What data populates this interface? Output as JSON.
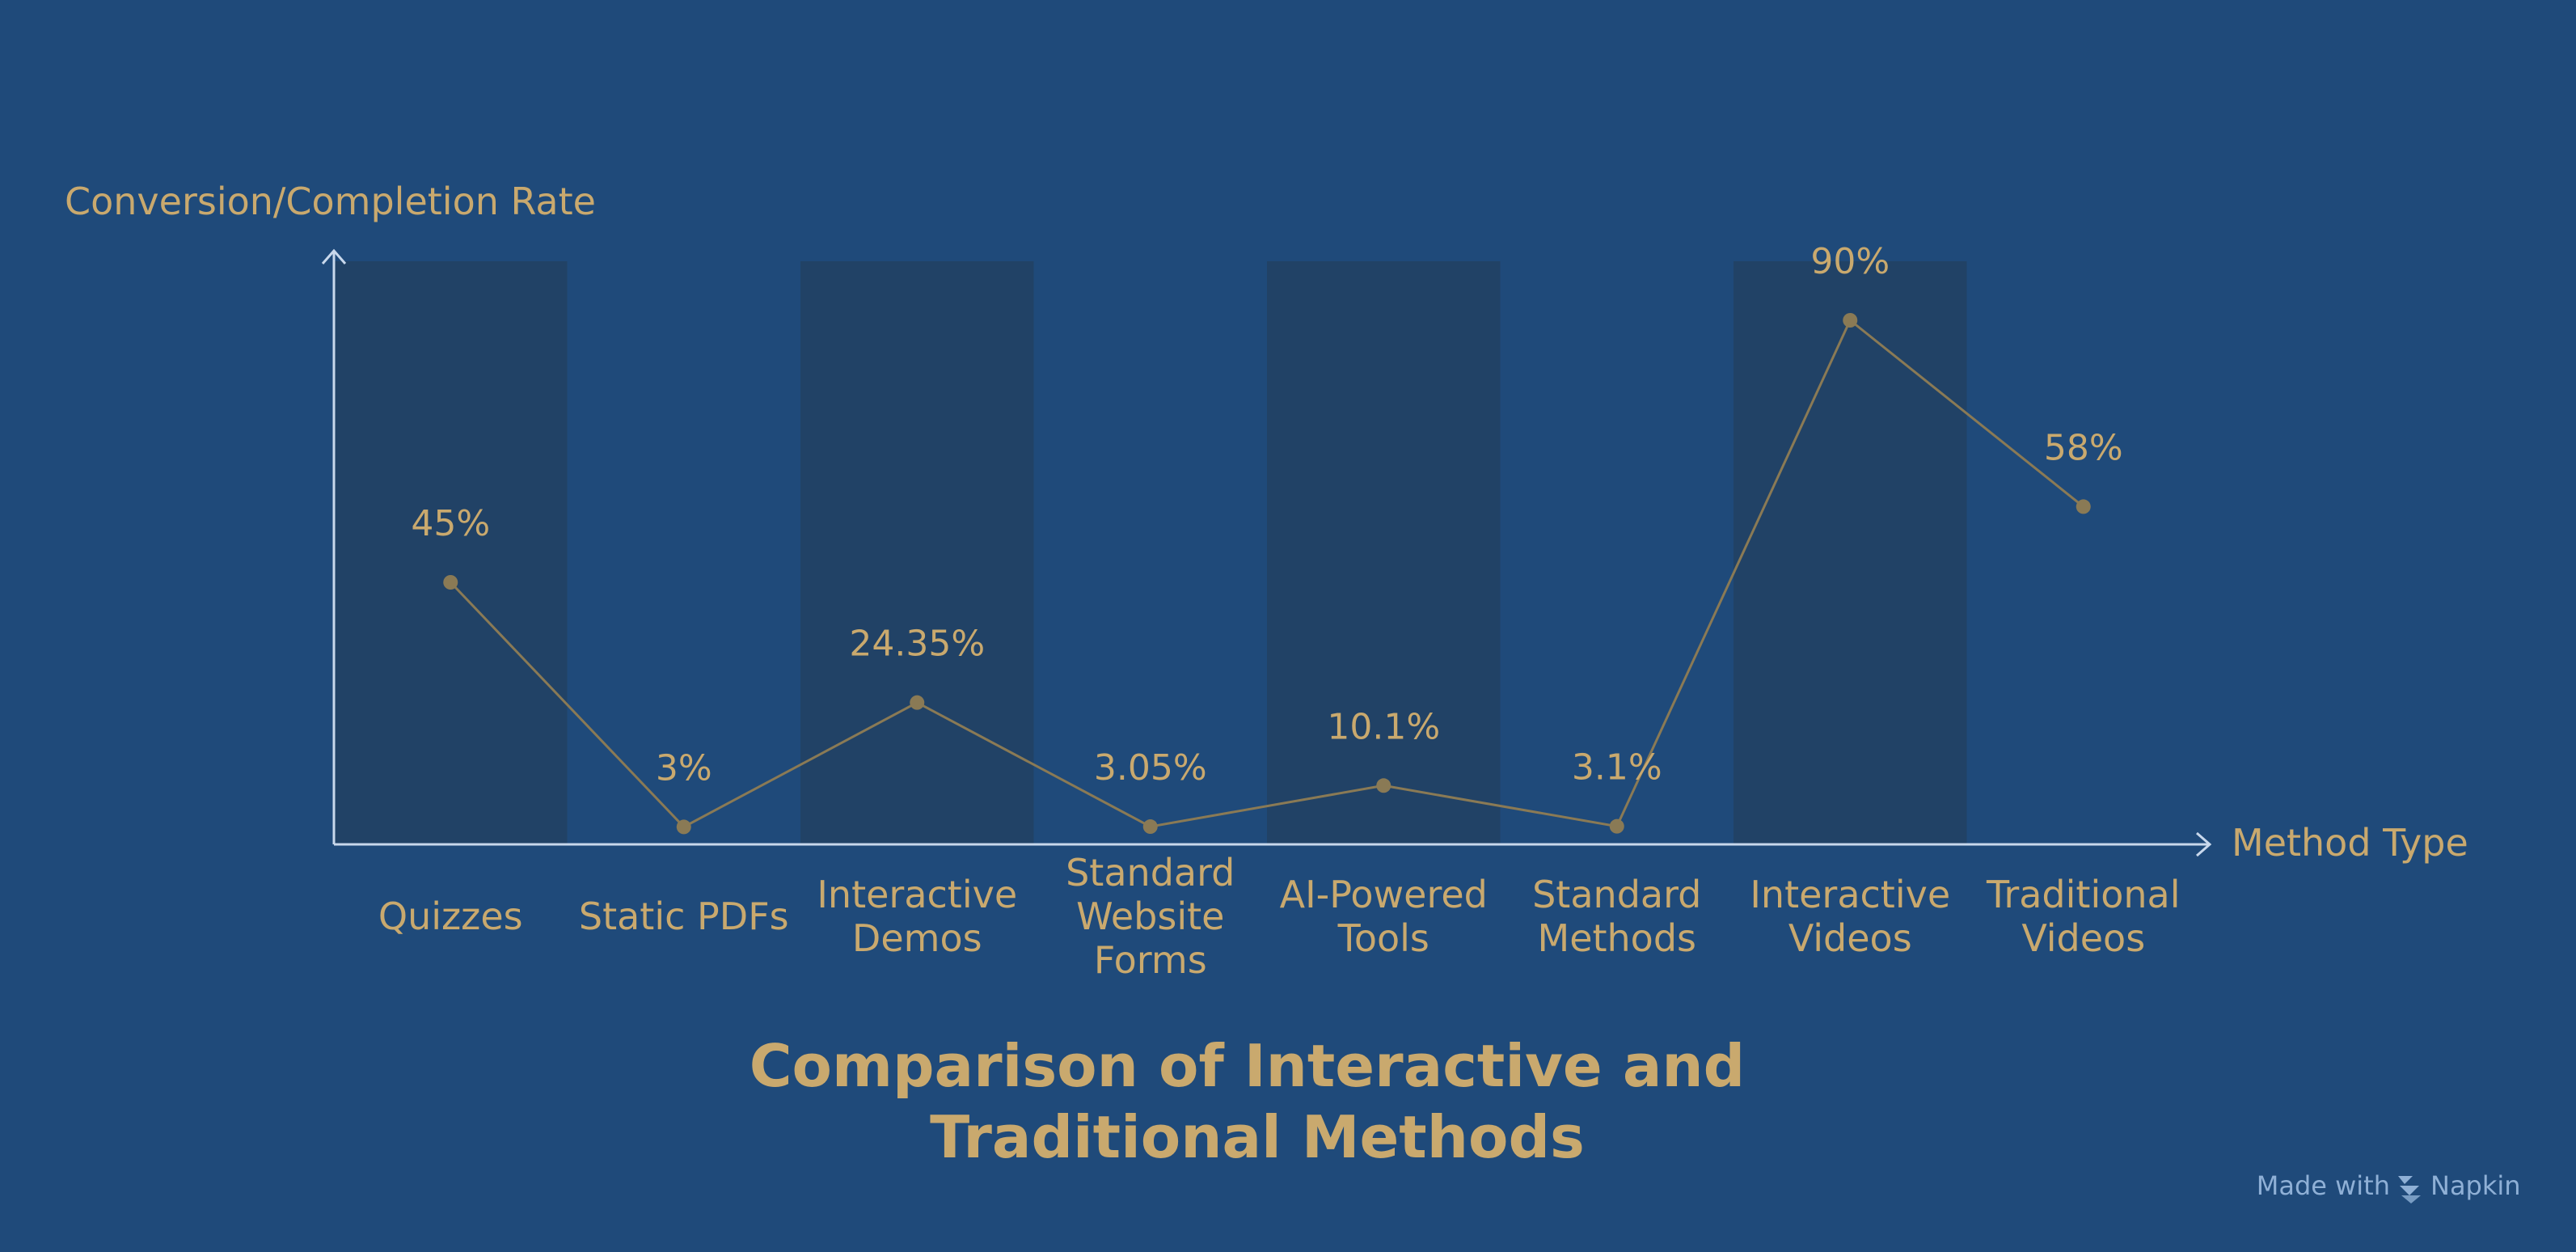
{
  "chart_data": {
    "type": "line",
    "title": "Comparison of Interactive and Traditional Methods",
    "xlabel": "Method Type",
    "ylabel": "Conversion/Completion Rate",
    "categories": [
      "Quizzes",
      "Static PDFs",
      "Interactive Demos",
      "Standard Website Forms",
      "AI-Powered Tools",
      "Standard Methods",
      "Interactive Videos",
      "Traditional Videos"
    ],
    "values": [
      45,
      3,
      24.35,
      3.05,
      10.1,
      3.1,
      90,
      58
    ],
    "data_labels": [
      "45%",
      "3%",
      "24.35%",
      "3.05%",
      "10.1%",
      "3.1%",
      "90%",
      "58%"
    ],
    "ylim": [
      0,
      100
    ],
    "grid": false,
    "legend": "none",
    "colors": {
      "background": "#1f4a7a",
      "band": "#214266",
      "line": "#8a7a55",
      "point": "#8a7a55",
      "text": "#c9a96e",
      "axis": "#c8d8ec"
    }
  },
  "footer": {
    "made_with": "Made with",
    "brand": "Napkin"
  }
}
